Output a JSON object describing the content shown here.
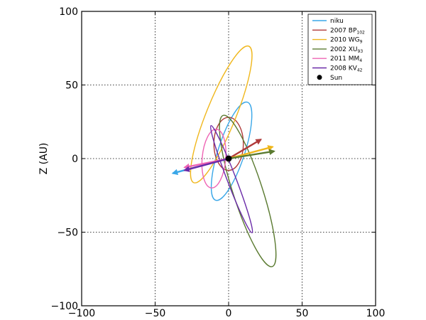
{
  "chart_data": {
    "type": "line",
    "xlabel": "",
    "ylabel": "Z (AU)",
    "xlim": [
      -100,
      100
    ],
    "ylim": [
      -100,
      100
    ],
    "x_ticks": [
      "−100",
      "−50",
      "0",
      "50",
      "100"
    ],
    "y_ticks": [
      "−100",
      "−50",
      "0",
      "50",
      "100"
    ],
    "grid": true,
    "grid_style": "dotted",
    "legend_position": "top-right",
    "series": [
      {
        "name": "niku",
        "label_main": "niku",
        "label_sub": "",
        "color": "#3aa7e8",
        "orbit": {
          "center": [
            2,
            5
          ],
          "semi_major": 35,
          "semi_minor": 9,
          "tilt_deg": 18
        },
        "arrow": {
          "from": [
            0,
            0
          ],
          "to": [
            -38,
            -10
          ]
        }
      },
      {
        "name": "2007 BP102",
        "label_main": "2007 BP",
        "label_sub": "102",
        "color": "#b03a3a",
        "orbit": {
          "center": [
            0,
            10
          ],
          "semi_major": 18,
          "semi_minor": 10,
          "tilt_deg": 0
        },
        "arrow": {
          "from": [
            0,
            0
          ],
          "to": [
            22,
            13
          ]
        }
      },
      {
        "name": "2010 WG9",
        "label_main": "2010 WG",
        "label_sub": "9",
        "color": "#f0b71c",
        "orbit": {
          "center": [
            -5,
            30
          ],
          "semi_major": 50,
          "semi_minor": 10,
          "tilt_deg": 22
        },
        "arrow": {
          "from": [
            0,
            0
          ],
          "to": [
            30,
            8
          ]
        }
      },
      {
        "name": "2002 XU93",
        "label_main": "2002 XU",
        "label_sub": "93",
        "color": "#5a7a30",
        "orbit": {
          "center": [
            13,
            -22
          ],
          "semi_major": 54,
          "semi_minor": 10,
          "tilt_deg": -18
        },
        "arrow": {
          "from": [
            0,
            0
          ],
          "to": [
            31,
            5
          ]
        }
      },
      {
        "name": "2011 MM4",
        "label_main": "2011 MM",
        "label_sub": "4",
        "color": "#ee64b4",
        "orbit": {
          "center": [
            -10,
            0
          ],
          "semi_major": 20,
          "semi_minor": 8,
          "tilt_deg": 5
        },
        "arrow": {
          "from": [
            0,
            0
          ],
          "to": [
            -30,
            -6
          ]
        }
      },
      {
        "name": "2008 KV42",
        "label_main": "2008 KV",
        "label_sub": "42",
        "color": "#6a2aa8",
        "orbit": {
          "center": [
            2,
            -14
          ],
          "semi_major": 39,
          "semi_minor": 3,
          "tilt_deg": -21
        },
        "arrow": {
          "from": [
            0,
            0
          ],
          "to": [
            -30,
            -8
          ]
        }
      }
    ],
    "sun": {
      "name": "Sun",
      "position": [
        0,
        0
      ],
      "color": "#000000"
    }
  }
}
